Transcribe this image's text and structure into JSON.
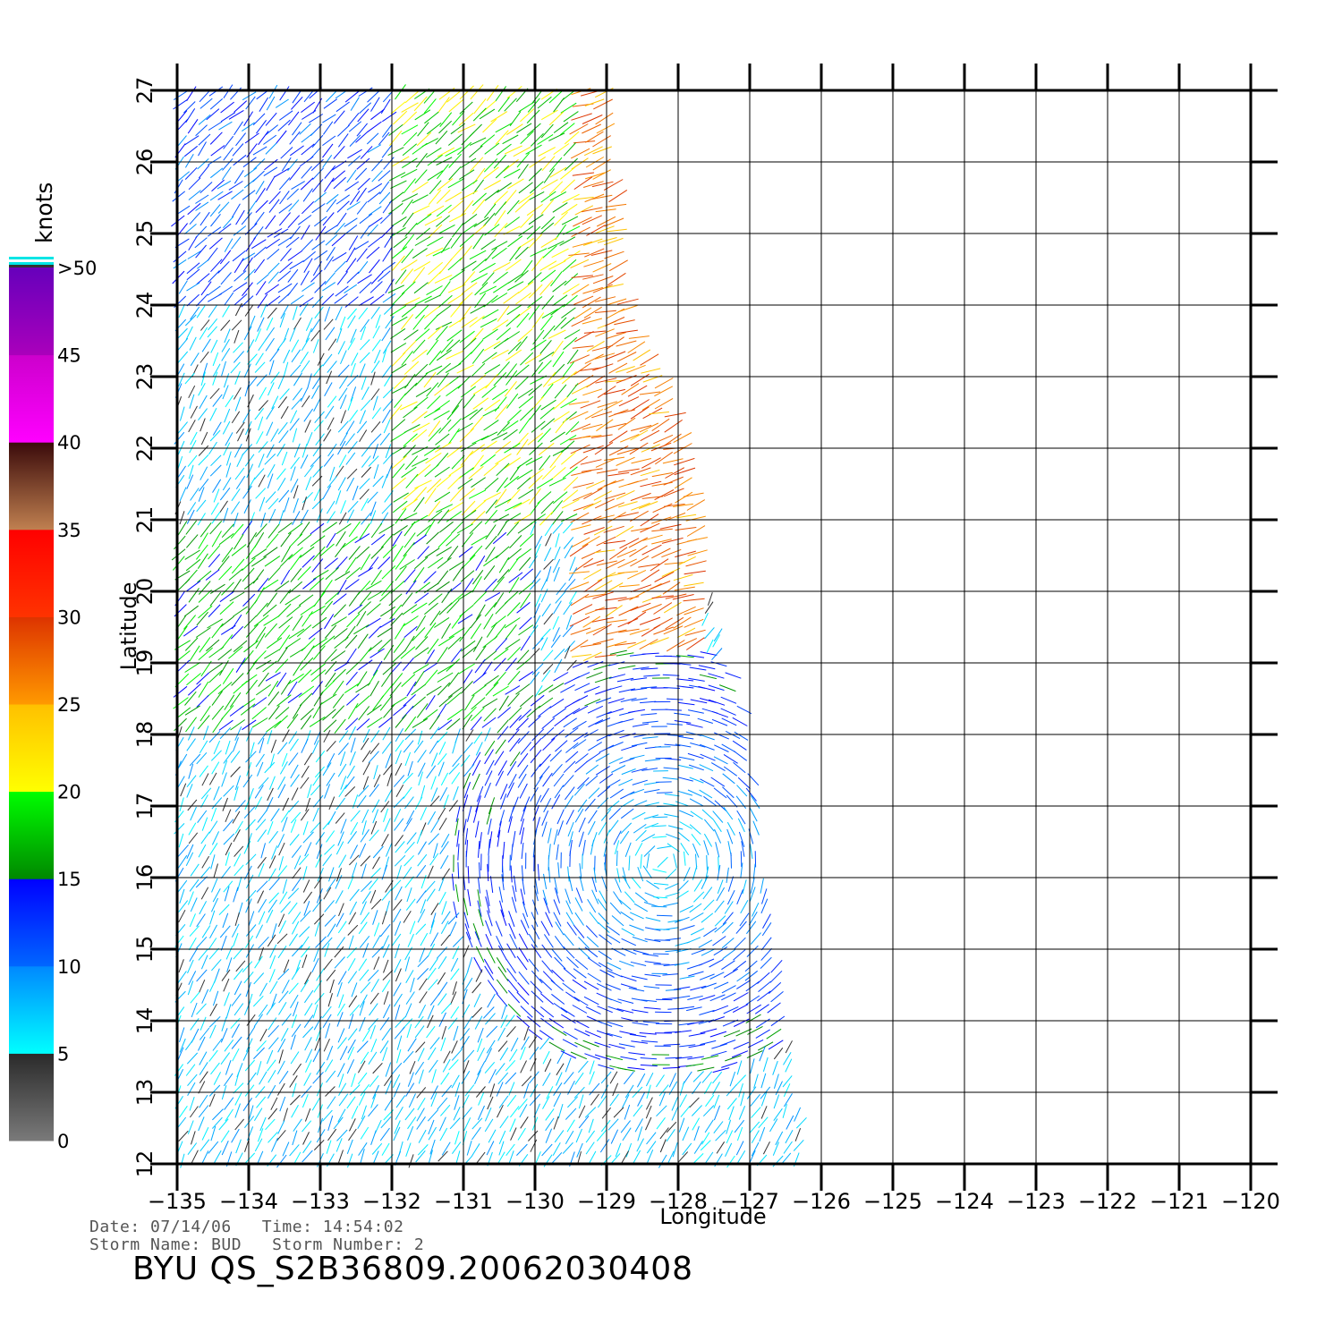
{
  "chart_data": {
    "type": "wind-vector-map",
    "x_axis": {
      "label": "Longitude",
      "range": [
        -135,
        -120
      ],
      "ticks": [
        "-135",
        "-134",
        "-133",
        "-132",
        "-131",
        "-130",
        "-129",
        "-128",
        "-127",
        "-126",
        "-125",
        "-124",
        "-123",
        "-122",
        "-121",
        "-120"
      ]
    },
    "y_axis": {
      "label": "Latitude",
      "range": [
        12,
        27
      ],
      "ticks": [
        "12",
        "13",
        "14",
        "15",
        "16",
        "17",
        "18",
        "19",
        "20",
        "21",
        "22",
        "23",
        "24",
        "25",
        "26",
        "27"
      ]
    },
    "grid": true,
    "colorbar": {
      "unit": "knots",
      "labels": [
        "0",
        "5",
        "10",
        "15",
        "20",
        "25",
        "30",
        "35",
        "40",
        "45",
        ">50"
      ],
      "placement": "left",
      "bands": [
        {
          "from": 0,
          "to": 5,
          "colors": [
            "#7a7a7a",
            "#2a2a2a"
          ]
        },
        {
          "from": 5,
          "to": 10,
          "colors": [
            "#00ffff",
            "#0088ff"
          ]
        },
        {
          "from": 10,
          "to": 15,
          "colors": [
            "#0066ff",
            "#0000ff"
          ]
        },
        {
          "from": 15,
          "to": 20,
          "colors": [
            "#008800",
            "#00ff00"
          ]
        },
        {
          "from": 20,
          "to": 25,
          "colors": [
            "#ffff00",
            "#ffc000"
          ]
        },
        {
          "from": 25,
          "to": 30,
          "colors": [
            "#ff9900",
            "#dd3300"
          ]
        },
        {
          "from": 30,
          "to": 35,
          "colors": [
            "#ff3300",
            "#ff0000"
          ]
        },
        {
          "from": 35,
          "to": 40,
          "colors": [
            "#c08050",
            "#3a0a0a"
          ]
        },
        {
          "from": 40,
          "to": 45,
          "colors": [
            "#ff00ff",
            "#cc00cc"
          ]
        },
        {
          "from": 45,
          "to": 50,
          "colors": [
            "#aa00bb",
            "#6600bb"
          ]
        }
      ]
    },
    "swath": {
      "west_lon": -135,
      "east_edge": [
        [
          27,
          -129.0
        ],
        [
          24,
          -128.7
        ],
        [
          22,
          -127.8
        ],
        [
          20,
          -127.6
        ],
        [
          18,
          -127.0
        ],
        [
          16,
          -126.8
        ],
        [
          12,
          -126.2
        ]
      ]
    },
    "wind_regions": [
      {
        "name": "north-west",
        "lat": [
          24,
          27
        ],
        "lon": [
          -135,
          -132
        ],
        "speed_kt": 12,
        "dir_deg": 225
      },
      {
        "name": "north-central",
        "lat": [
          21,
          27
        ],
        "lon": [
          -132,
          -129
        ],
        "speed_kt": 19,
        "dir_deg": 220
      },
      {
        "name": "east-edge",
        "lat": [
          19,
          27
        ],
        "lon": [
          -129.5,
          -127.6
        ],
        "speed_kt": 27,
        "dir_deg": 200
      },
      {
        "name": "center",
        "lat": [
          18,
          21
        ],
        "lon": [
          -135,
          -130
        ],
        "speed_kt": 17,
        "dir_deg": 225
      },
      {
        "name": "storm-core",
        "lat": [
          14,
          18.5
        ],
        "lon": [
          -130,
          -126.8
        ],
        "speed_kt": 11,
        "dir_deg": 300
      },
      {
        "name": "south",
        "lat": [
          12,
          15
        ],
        "lon": [
          -135,
          -127
        ],
        "speed_kt": 7,
        "dir_deg": 240
      }
    ]
  },
  "meta": {
    "date_label": "Date:",
    "date": "07/14/06",
    "time_label": "Time:",
    "time": "14:54:02",
    "storm_name_label": "Storm Name:",
    "storm_name": "BUD",
    "storm_number_label": "Storm Number:",
    "storm_number": "2"
  },
  "title": "BYU QS_S2B36809.20062030408"
}
